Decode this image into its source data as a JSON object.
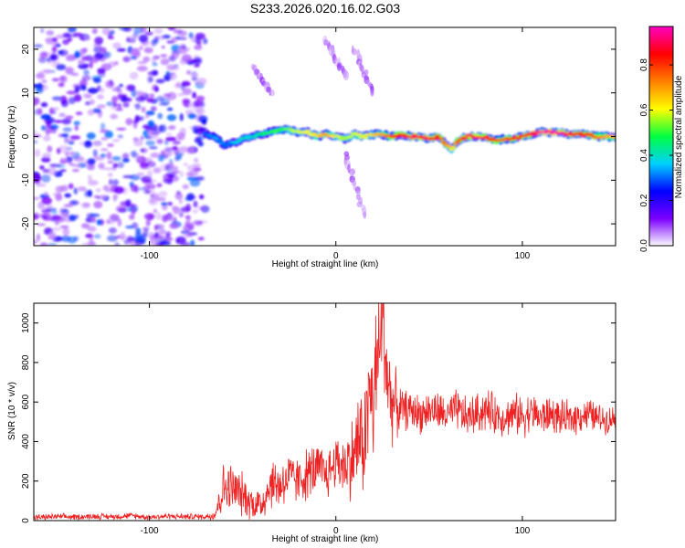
{
  "chart_data": [
    {
      "type": "heatmap",
      "title": "S233.2026.020.16.02.G03",
      "xlabel": "Height of straight line (km)",
      "ylabel": "Frequency (Hz)",
      "xlim": [
        -162,
        150
      ],
      "ylim": [
        -25,
        25
      ],
      "xticks": [
        -100,
        0,
        100
      ],
      "yticks": [
        -20,
        -10,
        0,
        10,
        20
      ],
      "noise_region_x": [
        -162,
        -70
      ],
      "ridge": {
        "x": [
          -70,
          -65,
          -60,
          -55,
          -50,
          -45,
          -40,
          -35,
          -30,
          -25,
          -20,
          -15,
          -10,
          -5,
          0,
          5,
          10,
          15,
          20,
          25,
          30,
          35,
          40,
          45,
          50,
          55,
          60,
          62,
          65,
          70,
          75,
          80,
          85,
          90,
          95,
          100,
          105,
          110,
          115,
          120,
          125,
          130,
          135,
          140,
          145,
          150
        ],
        "frequency_hz": [
          0.5,
          0.0,
          -2.0,
          -1.5,
          -0.5,
          0.0,
          0.5,
          1.0,
          1.5,
          1.5,
          1.0,
          1.0,
          0.0,
          0.5,
          0.0,
          -0.5,
          0.5,
          0.0,
          0.5,
          0.5,
          0.0,
          0.5,
          0.0,
          0.0,
          -0.5,
          0.0,
          -2.0,
          -3.0,
          -1.0,
          0.0,
          0.0,
          0.0,
          -1.0,
          -0.5,
          -0.5,
          0.0,
          0.5,
          1.0,
          1.0,
          1.0,
          0.5,
          0.5,
          0.5,
          0.0,
          0.0,
          0.0
        ],
        "amplitude": [
          0.3,
          0.35,
          0.3,
          0.35,
          0.4,
          0.4,
          0.45,
          0.5,
          0.5,
          0.55,
          0.6,
          0.6,
          0.65,
          0.7,
          0.6,
          0.55,
          0.6,
          0.6,
          0.65,
          0.7,
          0.8,
          0.85,
          0.9,
          0.9,
          0.9,
          0.85,
          0.7,
          0.6,
          0.75,
          0.9,
          0.9,
          0.9,
          0.8,
          0.75,
          0.8,
          0.85,
          0.9,
          0.95,
          0.95,
          0.95,
          0.9,
          0.85,
          0.8,
          0.75,
          0.7,
          0.7
        ]
      },
      "streaks": [
        {
          "x": [
            -45,
            -35
          ],
          "frequency_hz": [
            16,
            10
          ]
        },
        {
          "x": [
            -5,
            5
          ],
          "frequency_hz": [
            22,
            14
          ]
        },
        {
          "x": [
            10,
            20
          ],
          "frequency_hz": [
            20,
            10
          ]
        },
        {
          "x": [
            5,
            15
          ],
          "frequency_hz": [
            -4,
            -18
          ]
        }
      ],
      "colorbar": {
        "label": "Normalized spectral amplitude",
        "range": [
          0.0,
          0.97
        ],
        "ticks": [
          "0.0",
          "0.2",
          "0.4",
          "0.6",
          "0.8"
        ],
        "tick_values": [
          0.0,
          0.2,
          0.4,
          0.6,
          0.8
        ],
        "colors": [
          "#ffffff",
          "#7b00ff",
          "#0000ff",
          "#00d0ff",
          "#00ff40",
          "#ffff00",
          "#ff8000",
          "#ff0000",
          "#ff00c0"
        ]
      }
    },
    {
      "type": "line",
      "xlabel": "Height of straight line (km)",
      "ylabel": "SNR (10 * v/v)",
      "xlim": [
        -162,
        150
      ],
      "ylim": [
        0,
        1100
      ],
      "xticks": [
        -100,
        0,
        100
      ],
      "yticks": [
        0,
        200,
        400,
        600,
        800,
        1000
      ],
      "color": "#ee2222",
      "series": [
        {
          "name": "SNR",
          "x": [
            -162,
            -150,
            -140,
            -130,
            -120,
            -110,
            -100,
            -90,
            -80,
            -70,
            -65,
            -60,
            -55,
            -50,
            -45,
            -40,
            -35,
            -30,
            -25,
            -20,
            -15,
            -10,
            -5,
            0,
            5,
            10,
            12,
            15,
            18,
            20,
            22,
            25,
            28,
            30,
            35,
            40,
            45,
            50,
            55,
            60,
            65,
            70,
            75,
            80,
            85,
            90,
            95,
            100,
            105,
            110,
            115,
            120,
            125,
            130,
            135,
            140,
            145,
            150
          ],
          "values": [
            15,
            20,
            18,
            22,
            20,
            25,
            18,
            22,
            20,
            20,
            30,
            170,
            160,
            130,
            90,
            80,
            190,
            180,
            220,
            200,
            240,
            260,
            230,
            300,
            280,
            330,
            420,
            380,
            640,
            580,
            790,
            1010,
            700,
            600,
            560,
            560,
            540,
            560,
            550,
            530,
            560,
            520,
            540,
            560,
            540,
            520,
            540,
            530,
            550,
            520,
            540,
            520,
            510,
            530,
            540,
            520,
            510,
            520
          ],
          "noise_amplitude": [
            18,
            18,
            18,
            18,
            18,
            18,
            18,
            18,
            18,
            18,
            40,
            160,
            150,
            130,
            100,
            120,
            150,
            160,
            150,
            140,
            160,
            160,
            150,
            160,
            200,
            260,
            320,
            300,
            400,
            420,
            400,
            350,
            300,
            250,
            130,
            110,
            120,
            110,
            120,
            110,
            130,
            120,
            120,
            130,
            120,
            110,
            120,
            130,
            110,
            120,
            110,
            100,
            110,
            100,
            100,
            90,
            80,
            80
          ]
        }
      ]
    }
  ]
}
